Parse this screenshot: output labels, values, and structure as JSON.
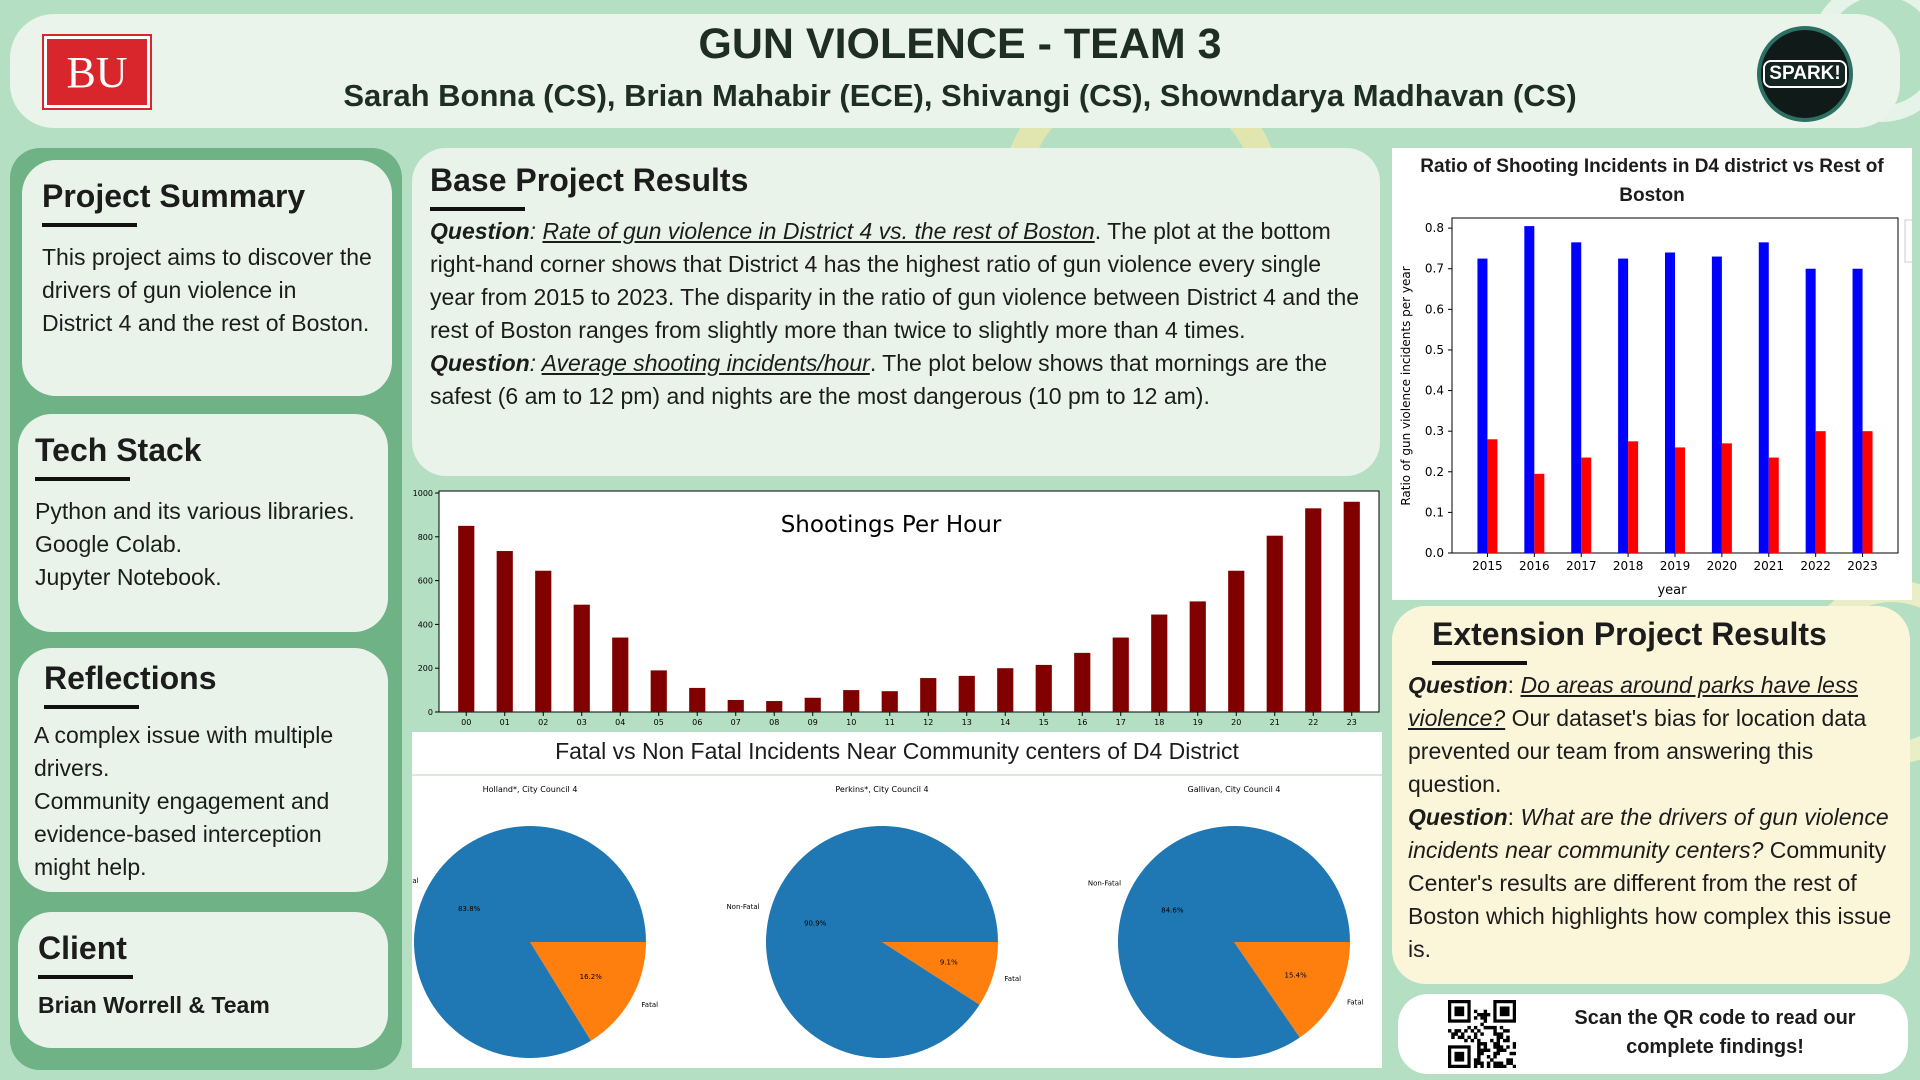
{
  "header": {
    "title": "GUN VIOLENCE - TEAM 3",
    "authors": "Sarah Bonna (CS), Brian Mahabir (ECE), Shivangi (CS), Showndarya Madhavan (CS)",
    "bu_logo": "BU",
    "spark_logo": "SPARK!"
  },
  "left": {
    "summary": {
      "title": "Project Summary",
      "body": "This project aims to discover the drivers of gun violence in District 4 and the rest of Boston."
    },
    "tech": {
      "title": "Tech Stack",
      "lines": [
        "Python and its various libraries.",
        "Google Colab.",
        "Jupyter Notebook."
      ]
    },
    "reflections": {
      "title": "Reflections",
      "lines": [
        "A complex issue with multiple drivers.",
        "Community engagement and evidence-based interception might help."
      ]
    },
    "client": {
      "title": "Client",
      "name": "Brian Worrell & Team"
    }
  },
  "base": {
    "title": "Base Project Results",
    "q1_label": "Question",
    "q1_link": "Rate of gun violence in District 4 vs. the rest of Boston",
    "q1_text": ". The plot at the bottom right-hand corner shows that District 4 has the highest ratio of gun violence every single year from 2015 to 2023. The disparity in the ratio of gun violence between District 4 and the rest of Boston ranges from slightly more than twice to slightly more than 4 times.",
    "q2_label": "Question",
    "q2_link": "Average shooting incidents/hour",
    "q2_text": ". The plot below shows that mornings are the safest (6 am to 12 pm) and nights are the most dangerous (10 pm to 12 am)."
  },
  "extension": {
    "title": "Extension Project Results",
    "q1_label": "Question",
    "q1_link": "Do areas around parks have less violence?",
    "q1_text": " Our dataset's bias for location data prevented our team from answering this question.",
    "q2_label": "Question",
    "q2_italic": "What are the drivers of gun violence incidents near community centers?",
    "q2_text": " Community Center's results are different from the rest of Boston which highlights how complex this issue is."
  },
  "qr": {
    "text": "Scan the QR code to read our complete findings!"
  },
  "colors": {
    "bar_hour": "#800000",
    "d4": "#0000ff",
    "rest": "#ff0000",
    "nonfatal": "#1f77b4",
    "fatal": "#ff7f0e"
  },
  "chart_data": [
    {
      "type": "bar",
      "title": "Shootings Per Hour",
      "categories": [
        "00",
        "01",
        "02",
        "03",
        "04",
        "05",
        "06",
        "07",
        "08",
        "09",
        "10",
        "11",
        "12",
        "13",
        "14",
        "15",
        "16",
        "17",
        "18",
        "19",
        "20",
        "21",
        "22",
        "23"
      ],
      "values": [
        850,
        735,
        645,
        490,
        340,
        190,
        110,
        55,
        50,
        65,
        100,
        95,
        155,
        165,
        200,
        215,
        270,
        340,
        445,
        505,
        645,
        805,
        930,
        960
      ],
      "ylim": [
        0,
        1000
      ],
      "yticks": [
        0,
        200,
        400,
        600,
        800,
        1000
      ]
    },
    {
      "type": "bar",
      "title": "Ratio of Shooting Incidents in D4 district vs Rest of Boston",
      "xlabel": "year",
      "ylabel": "Ratio of gun violence incidents per year",
      "categories": [
        "2015",
        "2016",
        "2017",
        "2018",
        "2019",
        "2020",
        "2021",
        "2022",
        "2023"
      ],
      "series": [
        {
          "values": [
            0.725,
            0.805,
            0.765,
            0.725,
            0.74,
            0.73,
            0.765,
            0.7,
            0.7
          ]
        },
        {
          "values": [
            0.28,
            0.195,
            0.235,
            0.275,
            0.26,
            0.27,
            0.235,
            0.3,
            0.3
          ]
        }
      ],
      "ylim": [
        0,
        0.82
      ],
      "yticks": [
        "0.0",
        "0.1",
        "0.2",
        "0.3",
        "0.4",
        "0.5",
        "0.6",
        "0.7",
        "0.8"
      ]
    },
    {
      "type": "pie",
      "title": "Fatal vs Non Fatal Incidents Near Community centers of D4 District",
      "pies": [
        {
          "title": "Holland*, City Council 4",
          "labels": [
            "Non-Fatal",
            "Fatal"
          ],
          "values": [
            83.8,
            16.2
          ],
          "pct_labels": [
            "83.8%",
            "16.2%"
          ]
        },
        {
          "title": "Perkins*, City Council 4",
          "labels": [
            "Non-Fatal",
            "Fatal"
          ],
          "values": [
            90.9,
            9.1
          ],
          "pct_labels": [
            "90.9%",
            "9.1%"
          ]
        },
        {
          "title": "Gallivan, City Council 4",
          "labels": [
            "Non-Fatal",
            "Fatal"
          ],
          "values": [
            84.6,
            15.4
          ],
          "pct_labels": [
            "84.6%",
            "15.4%"
          ]
        }
      ]
    }
  ]
}
